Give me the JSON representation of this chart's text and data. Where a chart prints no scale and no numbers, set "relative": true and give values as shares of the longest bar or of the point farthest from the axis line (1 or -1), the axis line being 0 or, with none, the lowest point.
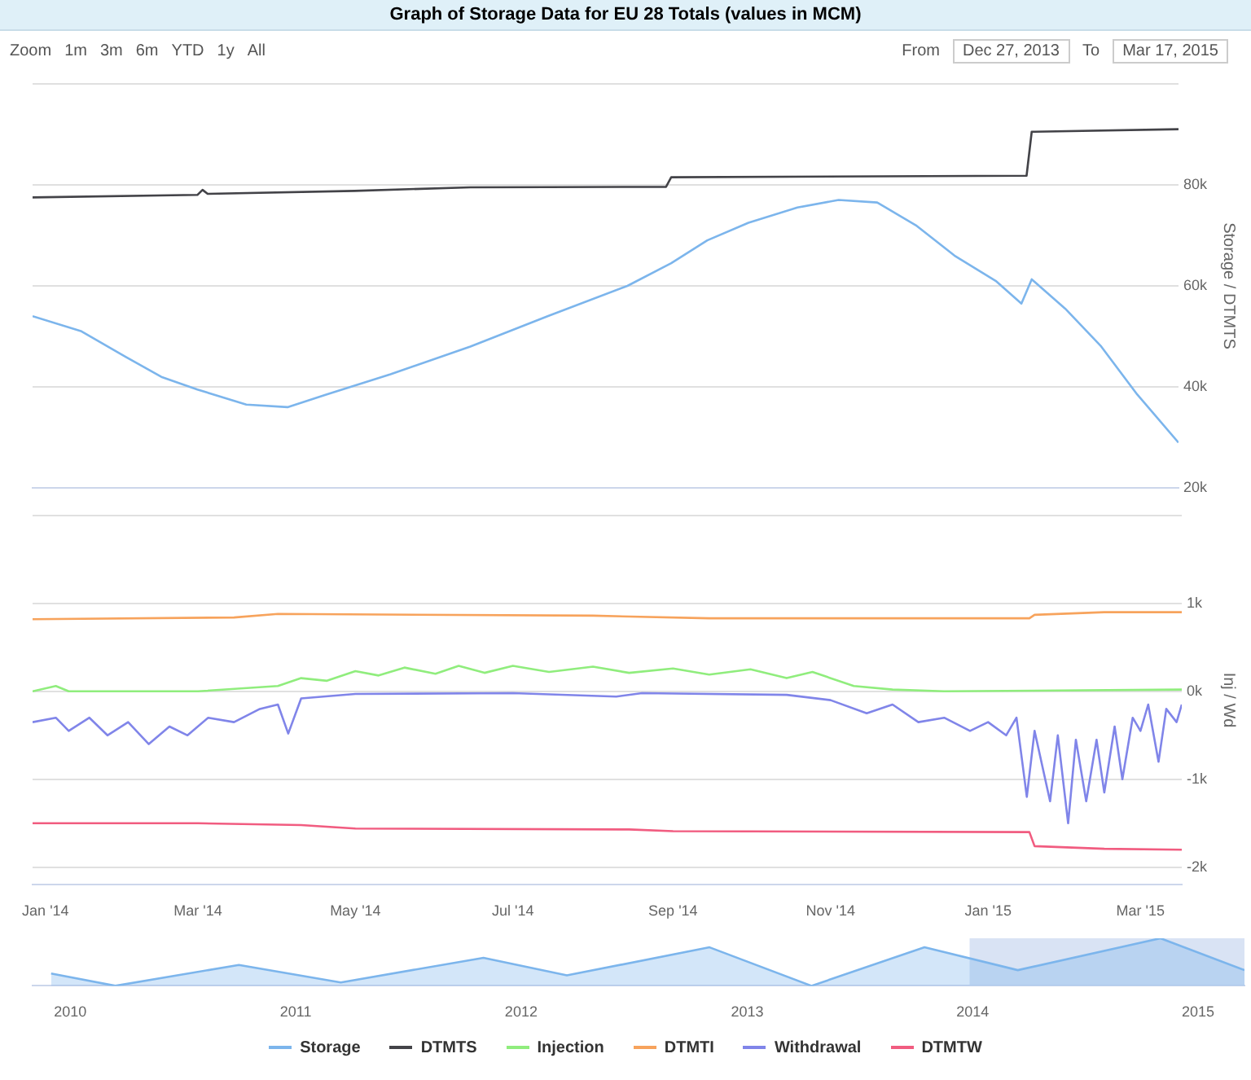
{
  "chart_data": [
    {
      "type": "other",
      "title": "Graph of Storage Data for EU 28 Totals (values in MCM)",
      "annotations": [
        "Zoom",
        "1m",
        "3m",
        "6m",
        "YTD",
        "1y",
        "All",
        "From",
        "Dec 27, 2013",
        "To",
        "Mar 17, 2015"
      ]
    },
    {
      "type": "line",
      "ylabel": "Storage / DTMTS",
      "legend": "bottom",
      "grid": "y",
      "tick_labels": "y",
      "xlim": [
        "2013-12-27",
        "2015-03-17"
      ],
      "ylim": [
        20000,
        100000
      ],
      "yticks": [
        {
          "value": 20000,
          "label": "20k"
        },
        {
          "value": 40000,
          "label": "40k"
        },
        {
          "value": 60000,
          "label": "60k"
        },
        {
          "value": 80000,
          "label": "80k"
        },
        {
          "value": 100000,
          "label": null
        }
      ],
      "series": [
        {
          "name": "Storage",
          "color": "#7cb5ec",
          "x": [
            "2013-12-27",
            "2014-01-15",
            "2014-02-01",
            "2014-02-15",
            "2014-03-01",
            "2014-03-20",
            "2014-04-05",
            "2014-04-20",
            "2014-05-15",
            "2014-06-15",
            "2014-07-15",
            "2014-08-15",
            "2014-09-01",
            "2014-09-15",
            "2014-10-01",
            "2014-10-20",
            "2014-11-05",
            "2014-11-20",
            "2014-12-05",
            "2014-12-20",
            "2015-01-05",
            "2015-01-15",
            "2015-01-19",
            "2015-02-01",
            "2015-02-15",
            "2015-03-01",
            "2015-03-17"
          ],
          "values": [
            54000,
            51000,
            46000,
            42000,
            39500,
            36500,
            36000,
            38500,
            42500,
            48000,
            54000,
            60000,
            64500,
            69000,
            72500,
            75500,
            77000,
            76500,
            72000,
            66000,
            61000,
            56500,
            61300,
            55500,
            48000,
            38500,
            29000
          ]
        },
        {
          "name": "DTMTS",
          "color": "#434348",
          "x": [
            "2013-12-27",
            "2014-03-01",
            "2014-03-03",
            "2014-03-05",
            "2014-05-01",
            "2014-06-15",
            "2014-08-30",
            "2014-09-01",
            "2015-01-17",
            "2015-01-19",
            "2015-03-17"
          ],
          "values": [
            77500,
            78000,
            79000,
            78200,
            78800,
            79500,
            79600,
            81500,
            81800,
            90500,
            91000
          ]
        }
      ]
    },
    {
      "type": "line",
      "ylabel": "Inj / Wd",
      "legend": "bottom",
      "grid": "y",
      "xlim": [
        "2013-12-27",
        "2015-03-17"
      ],
      "xticks": [
        {
          "value": "2014-01-01",
          "label": "Jan '14"
        },
        {
          "value": "2014-03-01",
          "label": "Mar '14"
        },
        {
          "value": "2014-05-01",
          "label": "May '14"
        },
        {
          "value": "2014-07-01",
          "label": "Jul '14"
        },
        {
          "value": "2014-09-01",
          "label": "Sep '14"
        },
        {
          "value": "2014-11-01",
          "label": "Nov '14"
        },
        {
          "value": "2015-01-01",
          "label": "Jan '15"
        },
        {
          "value": "2015-03-01",
          "label": "Mar '15"
        }
      ],
      "ylim": [
        -2200,
        2000
      ],
      "yticks": [
        {
          "value": -2000,
          "label": "-2k"
        },
        {
          "value": -1000,
          "label": "-1k"
        },
        {
          "value": 0,
          "label": "0k"
        },
        {
          "value": 1000,
          "label": "1k"
        },
        {
          "value": 2000,
          "label": null
        }
      ],
      "series": [
        {
          "name": "Injection",
          "color": "#90ed7d",
          "x": [
            "2013-12-27",
            "2014-01-05",
            "2014-01-10",
            "2014-03-01",
            "2014-04-01",
            "2014-04-10",
            "2014-04-20",
            "2014-05-01",
            "2014-05-10",
            "2014-05-20",
            "2014-06-01",
            "2014-06-10",
            "2014-06-20",
            "2014-07-01",
            "2014-07-15",
            "2014-08-01",
            "2014-08-15",
            "2014-09-01",
            "2014-09-15",
            "2014-10-01",
            "2014-10-15",
            "2014-10-25",
            "2014-11-10",
            "2014-11-25",
            "2014-12-15",
            "2015-03-17"
          ],
          "values": [
            0,
            60,
            0,
            0,
            60,
            150,
            120,
            230,
            180,
            270,
            200,
            290,
            210,
            290,
            220,
            280,
            210,
            260,
            190,
            250,
            150,
            220,
            60,
            20,
            0,
            20
          ]
        },
        {
          "name": "DTMTI",
          "color": "#f7a35c",
          "x": [
            "2013-12-27",
            "2014-03-15",
            "2014-04-01",
            "2014-08-01",
            "2014-09-15",
            "2015-01-17",
            "2015-01-19",
            "2015-02-15",
            "2015-03-17"
          ],
          "values": [
            820,
            840,
            880,
            860,
            830,
            830,
            870,
            900,
            900
          ]
        },
        {
          "name": "Withdrawal",
          "color": "#8085e9",
          "x": [
            "2013-12-27",
            "2014-01-05",
            "2014-01-10",
            "2014-01-18",
            "2014-01-25",
            "2014-02-02",
            "2014-02-10",
            "2014-02-18",
            "2014-02-25",
            "2014-03-05",
            "2014-03-15",
            "2014-03-25",
            "2014-04-01",
            "2014-04-05",
            "2014-04-10",
            "2014-05-01",
            "2014-07-01",
            "2014-08-10",
            "2014-08-20",
            "2014-10-15",
            "2014-11-01",
            "2014-11-15",
            "2014-11-25",
            "2014-12-05",
            "2014-12-15",
            "2014-12-25",
            "2015-01-01",
            "2015-01-08",
            "2015-01-12",
            "2015-01-16",
            "2015-01-19",
            "2015-01-25",
            "2015-01-28",
            "2015-02-01",
            "2015-02-04",
            "2015-02-08",
            "2015-02-12",
            "2015-02-15",
            "2015-02-19",
            "2015-02-22",
            "2015-02-26",
            "2015-03-01",
            "2015-03-04",
            "2015-03-08",
            "2015-03-11",
            "2015-03-15",
            "2015-03-17"
          ],
          "values": [
            -350,
            -300,
            -450,
            -300,
            -500,
            -350,
            -600,
            -400,
            -500,
            -300,
            -350,
            -200,
            -150,
            -480,
            -80,
            -30,
            -20,
            -60,
            -20,
            -40,
            -100,
            -250,
            -150,
            -350,
            -300,
            -450,
            -350,
            -500,
            -300,
            -1200,
            -450,
            -1250,
            -500,
            -1500,
            -550,
            -1250,
            -550,
            -1150,
            -400,
            -1000,
            -300,
            -450,
            -150,
            -800,
            -200,
            -350,
            -150
          ]
        },
        {
          "name": "DTMTW",
          "color": "#f15c80",
          "x": [
            "2013-12-27",
            "2014-03-01",
            "2014-04-10",
            "2014-05-01",
            "2014-08-15",
            "2014-09-01",
            "2015-01-17",
            "2015-01-19",
            "2015-02-15",
            "2015-03-17"
          ],
          "values": [
            -1500,
            -1500,
            -1520,
            -1560,
            -1570,
            -1590,
            -1600,
            -1760,
            -1790,
            -1800
          ]
        }
      ]
    },
    {
      "type": "area",
      "relative": true,
      "xlim": [
        "2009-11-01",
        "2015-03-17"
      ],
      "xticks": [
        {
          "value": "2010-01-01",
          "label": "2010"
        },
        {
          "value": "2011-01-01",
          "label": "2011"
        },
        {
          "value": "2012-01-01",
          "label": "2012"
        },
        {
          "value": "2013-01-01",
          "label": "2013"
        },
        {
          "value": "2014-01-01",
          "label": "2014"
        },
        {
          "value": "2015-01-01",
          "label": "2015"
        }
      ],
      "bands": [
        {
          "axis": "x",
          "from": "2013-12-27",
          "to": "2015-03-17",
          "color": "#c9d7ef"
        }
      ],
      "series": [
        {
          "color": "#7cb5ec",
          "x": [
            "2009-12-01",
            "2010-03-15",
            "2010-10-01",
            "2011-03-15",
            "2011-11-01",
            "2012-03-15",
            "2012-11-01",
            "2013-04-15",
            "2013-10-15",
            "2014-03-15",
            "2014-11-01",
            "2015-03-17"
          ],
          "values": [
            0.26,
            0,
            0.44,
            0.07,
            0.59,
            0.22,
            0.81,
            0,
            0.81,
            0.33,
            1,
            0.33
          ]
        }
      ]
    }
  ]
}
